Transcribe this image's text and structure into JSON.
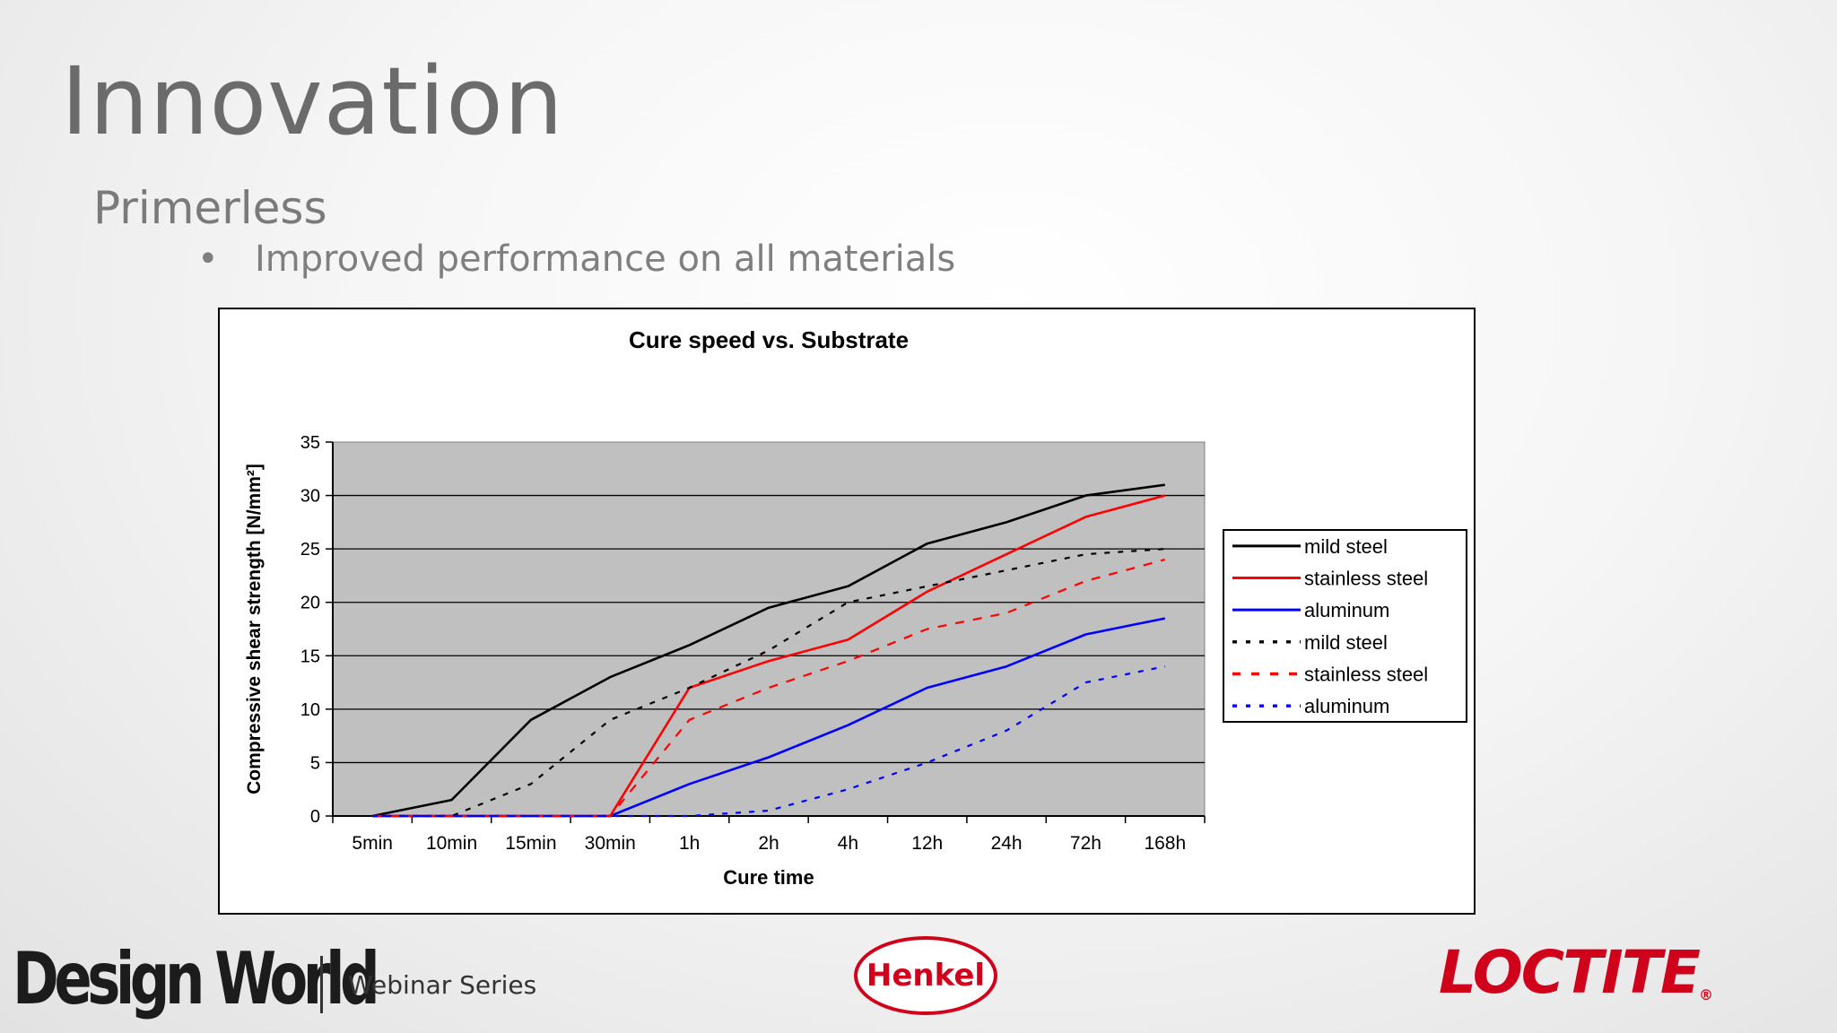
{
  "slide": {
    "title": "Innovation",
    "subtitle": "Primerless",
    "bullets": [
      "Improved performance on all materials"
    ]
  },
  "footer": {
    "brand": "Design World",
    "series": "Webinar Series",
    "henkel": "Henkel",
    "loctite": "LOCTITE",
    "loctite_mark": "®"
  },
  "chart_data": {
    "type": "line",
    "title": "Cure speed vs. Substrate",
    "xlabel": "Cure time",
    "ylabel": "Compressive shear strength [N/mm²]",
    "ylim": [
      0,
      35
    ],
    "yticks": [
      0,
      5,
      10,
      15,
      20,
      25,
      30,
      35
    ],
    "categories": [
      "5min",
      "10min",
      "15min",
      "30min",
      "1h",
      "2h",
      "4h",
      "12h",
      "24h",
      "72h",
      "168h"
    ],
    "grid": "horizontal",
    "legend_position": "right",
    "plot_background": "#c0c0c0",
    "series": [
      {
        "name": "mild steel",
        "color": "#000000",
        "dash": "solid",
        "values": [
          0,
          1.5,
          9,
          13,
          16,
          19.5,
          21.5,
          25.5,
          27.5,
          30,
          31
        ]
      },
      {
        "name": "stainless steel",
        "color": "#ff0000",
        "dash": "solid",
        "values": [
          0,
          0,
          0,
          0,
          12,
          14.5,
          16.5,
          21,
          24.5,
          28,
          30
        ]
      },
      {
        "name": "aluminum",
        "color": "#0000ff",
        "dash": "solid",
        "values": [
          0,
          0,
          0,
          0,
          3,
          5.5,
          8.5,
          12,
          14,
          17,
          18.5
        ]
      },
      {
        "name": "mild steel",
        "color": "#000000",
        "dash": "dotted",
        "values": [
          0,
          0,
          3,
          9,
          12,
          15.5,
          20,
          21.5,
          23,
          24.5,
          25
        ]
      },
      {
        "name": "stainless steel",
        "color": "#ff0000",
        "dash": "dashed",
        "values": [
          0,
          0,
          0,
          0,
          9,
          12,
          14.5,
          17.5,
          19,
          22,
          24
        ]
      },
      {
        "name": "aluminum",
        "color": "#0000ff",
        "dash": "dotted",
        "values": [
          0,
          0,
          0,
          0,
          0,
          0.5,
          2.5,
          5,
          8,
          12.5,
          14
        ]
      }
    ]
  }
}
